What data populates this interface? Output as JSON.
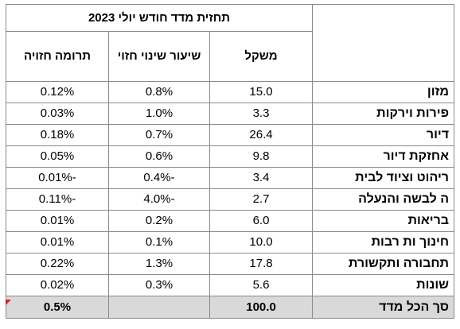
{
  "table": {
    "title": "תחזית מדד חודש יולי 2023",
    "columns": {
      "weight": "משקל",
      "change": "שיעור שינוי חזוי",
      "contribution": "תרומה חזויה"
    },
    "rows": [
      {
        "category": "מזון",
        "weight": "15.0",
        "change": "0.8%",
        "contribution": "0.12%"
      },
      {
        "category": "פירות וירקות",
        "weight": "3.3",
        "change": "1.0%",
        "contribution": "0.03%"
      },
      {
        "category": "דיור",
        "weight": "26.4",
        "change": "0.7%",
        "contribution": "0.18%"
      },
      {
        "category": "אחזקת דיור",
        "weight": "9.8",
        "change": "0.6%",
        "contribution": "0.05%"
      },
      {
        "category": "ריהוט וציוד  לבית",
        "weight": "3.4",
        "change": "-0.4%",
        "contribution": "-0.01%"
      },
      {
        "category": "ה לבשה והנעלה",
        "weight": "2.7",
        "change": "-4.0%",
        "contribution": "-0.11%"
      },
      {
        "category": "בריאות",
        "weight": "6.0",
        "change": "0.2%",
        "contribution": "0.01%"
      },
      {
        "category": "חינוך ות רבות",
        "weight": "10.0",
        "change": "0.1%",
        "contribution": "0.01%"
      },
      {
        "category": "תחבורה ותקשורת",
        "weight": "17.8",
        "change": "1.3%",
        "contribution": "0.22%"
      },
      {
        "category": "שונות",
        "weight": "5.6",
        "change": "0.3%",
        "contribution": "0.02%"
      }
    ],
    "total": {
      "category": "סך הכל מדד",
      "weight": "100.0",
      "change": "",
      "contribution": "0.5%"
    }
  },
  "colors": {
    "total_row_bg": "#d9d9d9",
    "border": "#8a8a8a",
    "marker": "#d42020"
  }
}
